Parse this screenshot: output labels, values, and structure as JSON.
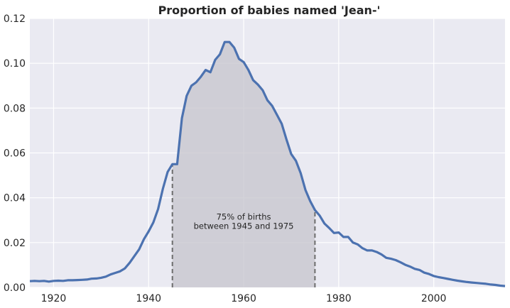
{
  "chart_data": {
    "type": "line",
    "title": "Proportion of babies named 'Jean-'",
    "xlabel": "",
    "ylabel": "",
    "xlim": [
      1915,
      2015
    ],
    "ylim": [
      0,
      0.12
    ],
    "xticks": [
      1920,
      1940,
      1960,
      1980,
      2000
    ],
    "yticks": [
      0.0,
      0.02,
      0.04,
      0.06,
      0.08,
      0.1,
      0.12
    ],
    "xtick_labels": [
      "1920",
      "1940",
      "1960",
      "1980",
      "2000"
    ],
    "ytick_labels": [
      "0.00",
      "0.02",
      "0.04",
      "0.06",
      "0.08",
      "0.10",
      "0.12"
    ],
    "grid": true,
    "shaded_range": [
      1945,
      1975
    ],
    "annotation": {
      "line1": "75% of births",
      "line2": "between 1945 and 1975",
      "x": 1960,
      "y": 0.03
    },
    "colors": {
      "line": "#4c72b0",
      "shade": "#c6c4cc",
      "background": "#eaeaf2",
      "grid": "#ffffff",
      "dashed": "#6d6d6d"
    },
    "series": [
      {
        "x": [
          1915,
          1916,
          1917,
          1918,
          1919,
          1920,
          1921,
          1922,
          1923,
          1924,
          1925,
          1926,
          1927,
          1928,
          1929,
          1930,
          1931,
          1932,
          1933,
          1934,
          1935,
          1936,
          1937,
          1938,
          1939,
          1940,
          1941,
          1942,
          1943,
          1944,
          1945,
          1946,
          1947,
          1948,
          1949,
          1950,
          1951,
          1952,
          1953,
          1954,
          1955,
          1956,
          1957,
          1958,
          1959,
          1960,
          1961,
          1962,
          1963,
          1964,
          1965,
          1966,
          1967,
          1968,
          1969,
          1970,
          1971,
          1972,
          1973,
          1974,
          1975,
          1976,
          1977,
          1978,
          1979,
          1980,
          1981,
          1982,
          1983,
          1984,
          1985,
          1986,
          1987,
          1988,
          1989,
          1990,
          1991,
          1992,
          1993,
          1994,
          1995,
          1996,
          1997,
          1998,
          1999,
          2000,
          2001,
          2002,
          2003,
          2004,
          2005,
          2006,
          2007,
          2008,
          2009,
          2010,
          2011,
          2012,
          2013,
          2014,
          2015
        ],
        "values": [
          0.0028,
          0.0029,
          0.0028,
          0.0029,
          0.0026,
          0.0029,
          0.003,
          0.0029,
          0.0032,
          0.0032,
          0.0033,
          0.0034,
          0.0035,
          0.0039,
          0.004,
          0.0043,
          0.0048,
          0.0058,
          0.0065,
          0.0072,
          0.0085,
          0.011,
          0.014,
          0.017,
          0.0215,
          0.025,
          0.029,
          0.035,
          0.044,
          0.0515,
          0.055,
          0.055,
          0.0755,
          0.0855,
          0.09,
          0.0915,
          0.094,
          0.097,
          0.096,
          0.1015,
          0.104,
          0.1095,
          0.1095,
          0.107,
          0.102,
          0.1005,
          0.097,
          0.0925,
          0.0905,
          0.088,
          0.0835,
          0.081,
          0.077,
          0.073,
          0.066,
          0.0595,
          0.0565,
          0.051,
          0.0435,
          0.0385,
          0.0345,
          0.032,
          0.0285,
          0.0265,
          0.0243,
          0.0245,
          0.0225,
          0.0225,
          0.02,
          0.0192,
          0.0175,
          0.0165,
          0.0165,
          0.0158,
          0.0147,
          0.0132,
          0.0128,
          0.0122,
          0.0112,
          0.0101,
          0.0093,
          0.0083,
          0.0078,
          0.0066,
          0.006,
          0.0051,
          0.0046,
          0.0042,
          0.0038,
          0.0034,
          0.003,
          0.0027,
          0.0024,
          0.0022,
          0.002,
          0.0018,
          0.0016,
          0.0013,
          0.0011,
          0.0008,
          0.0006
        ]
      }
    ]
  }
}
